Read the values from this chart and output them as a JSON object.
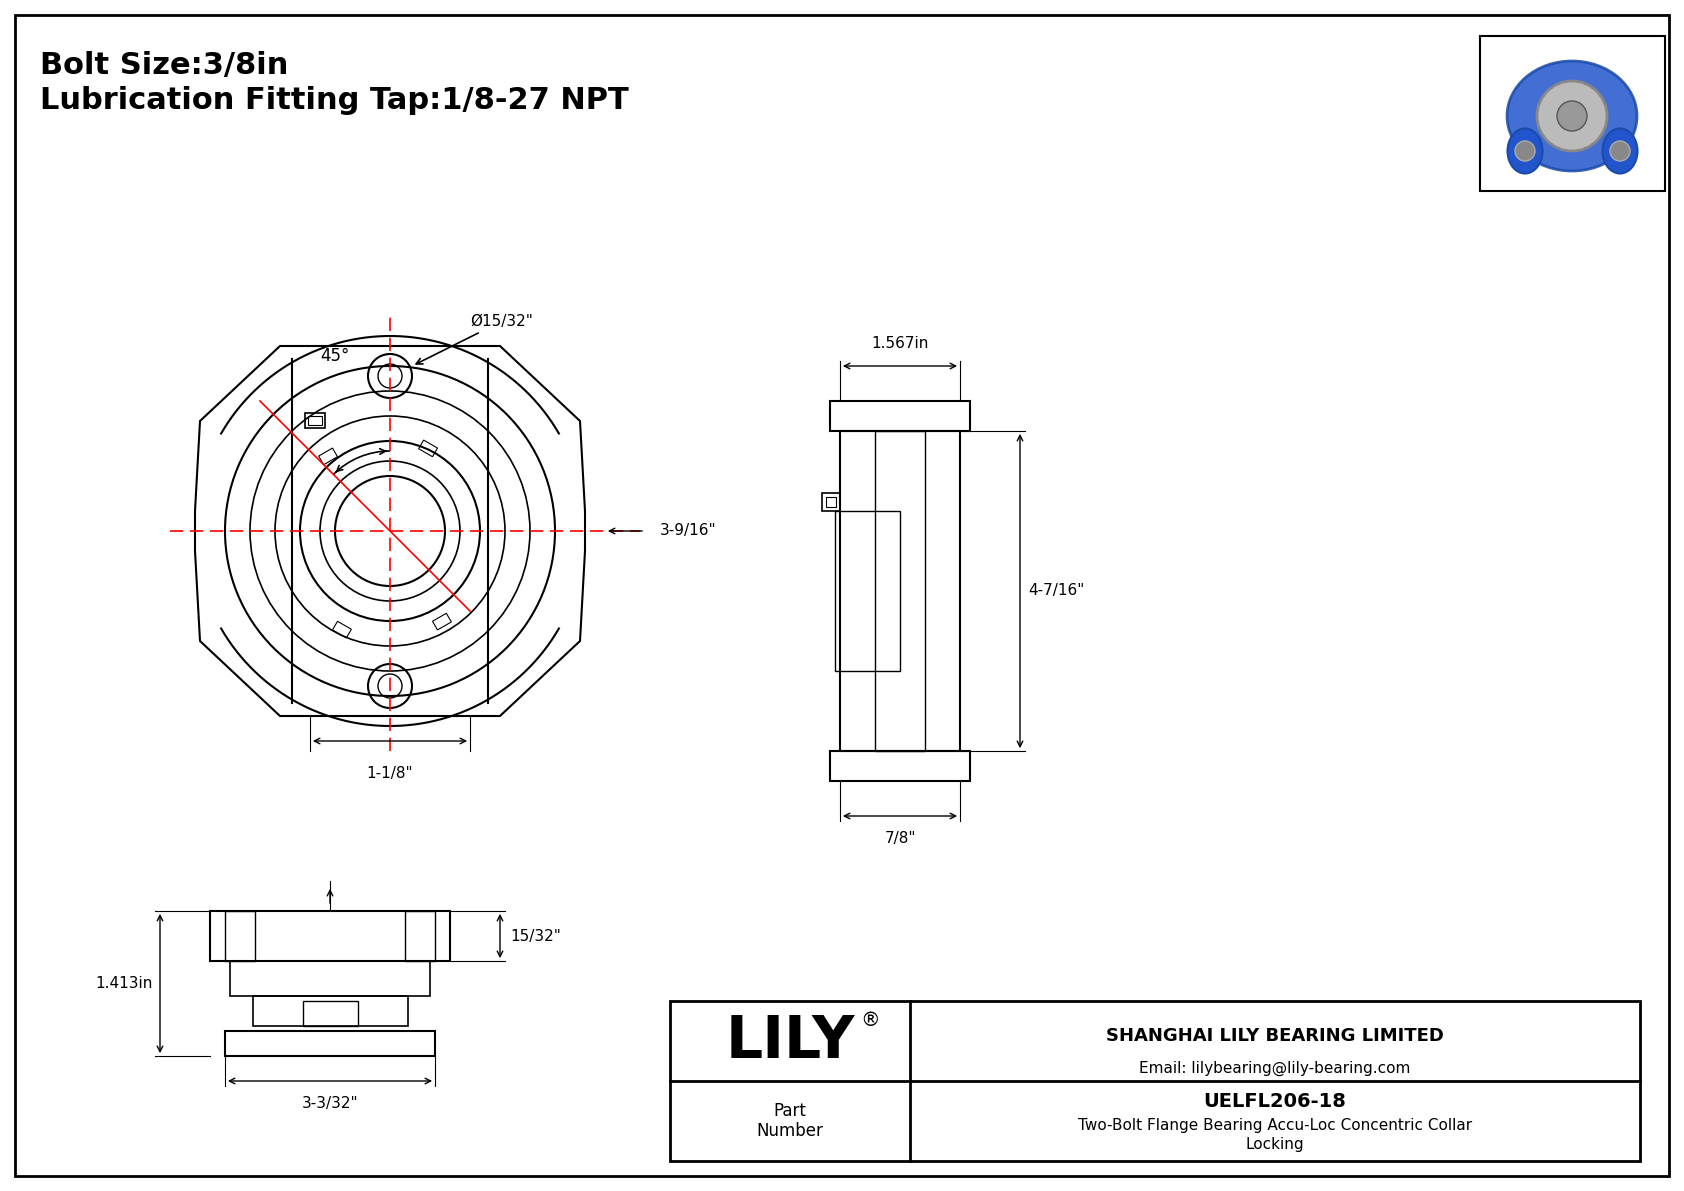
{
  "bg_color": "#ffffff",
  "border_color": "#000000",
  "line_color": "#000000",
  "red_color": "#ff0000",
  "title_line1": "Bolt Size:3/8in",
  "title_line2": "Lubrication Fitting Tap:1/8-27 NPT",
  "company_name": "SHANGHAI LILY BEARING LIMITED",
  "company_email": "Email: lilybearing@lily-bearing.com",
  "part_number": "UELFL206-18",
  "part_description": "Two-Bolt Flange Bearing Accu-Loc Concentric Collar",
  "part_description2": "Locking",
  "lily_logo": "LILY",
  "dim_bolt_angle": "45°",
  "dim_bolt_hole": "Ø15/32\"",
  "dim_center": "3-9/16\"",
  "dim_bottom": "1-1/8\"",
  "dim_width_top": "1.567in",
  "dim_height": "4-7/16\"",
  "dim_side_bottom": "7/8\"",
  "dim_front_height": "15/32\"",
  "dim_front_width_left": "1.413in",
  "dim_front_width": "3-3/32\""
}
